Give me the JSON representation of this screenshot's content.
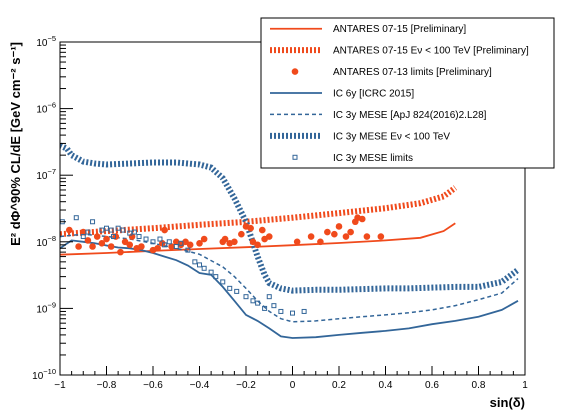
{
  "chart_data": {
    "type": "line",
    "title": "",
    "xlabel": "sin(δ)",
    "ylabel": "E² dΦ^90% CL/dE [GeV cm⁻² s⁻¹]",
    "xlim": [
      -1,
      1
    ],
    "ylim": [
      1e-10,
      1e-05
    ],
    "yscale": "log",
    "grid": false,
    "legend_position": "top-right",
    "x_ticks": [
      "−1",
      "−0.8",
      "−0.6",
      "−0.4",
      "−0.2",
      "0",
      "0.2",
      "0.4",
      "0.6",
      "0.8",
      "1"
    ],
    "x_tick_values": [
      -1,
      -0.8,
      -0.6,
      -0.4,
      -0.2,
      0,
      0.2,
      0.4,
      0.6,
      0.8,
      1
    ],
    "y_tick_values": [
      1e-10,
      1e-09,
      1e-08,
      1e-07,
      1e-06,
      1e-05
    ],
    "y_ticks": [
      {
        "base": "10",
        "exp": "−10"
      },
      {
        "base": "10",
        "exp": "−9"
      },
      {
        "base": "10",
        "exp": "−8"
      },
      {
        "base": "10",
        "exp": "−7"
      },
      {
        "base": "10",
        "exp": "−6"
      },
      {
        "base": "10",
        "exp": "−5"
      }
    ],
    "series": [
      {
        "name": "ANTARES 07-15 [Preliminary]",
        "style": "solid",
        "color": "#f04a1c",
        "x": [
          -1.0,
          -0.8,
          -0.6,
          -0.4,
          -0.2,
          0.0,
          0.2,
          0.4,
          0.55,
          0.65,
          0.7
        ],
        "y": [
          6.4e-09,
          6.8e-09,
          7.3e-09,
          7.8e-09,
          8.3e-09,
          8.9e-09,
          9.6e-09,
          1.05e-08,
          1.15e-08,
          1.45e-08,
          1.9e-08
        ]
      },
      {
        "name": "ANTARES 07-15 Eν < 100 TeV [Preliminary]",
        "style": "thick-dotted",
        "color": "#f04a1c",
        "x": [
          -1.0,
          -0.8,
          -0.6,
          -0.4,
          -0.2,
          0.0,
          0.2,
          0.4,
          0.55,
          0.65,
          0.7
        ],
        "y": [
          1.3e-08,
          1.45e-08,
          1.6e-08,
          1.8e-08,
          2e-08,
          2.3e-08,
          2.7e-08,
          3.2e-08,
          3.8e-08,
          4.8e-08,
          6.5e-08
        ]
      },
      {
        "name": "IC 6y [ICRC 2015]",
        "style": "solid",
        "color": "#336699",
        "x": [
          -1.0,
          -0.95,
          -0.9,
          -0.85,
          -0.8,
          -0.75,
          -0.7,
          -0.65,
          -0.6,
          -0.55,
          -0.5,
          -0.45,
          -0.4,
          -0.35,
          -0.3,
          -0.25,
          -0.2,
          -0.15,
          -0.1,
          -0.05,
          0.0,
          0.1,
          0.2,
          0.3,
          0.4,
          0.5,
          0.6,
          0.7,
          0.8,
          0.9,
          0.97
        ],
        "y": [
          8e-09,
          1.05e-08,
          1e-08,
          9.5e-09,
          8.8e-09,
          8.2e-09,
          8e-09,
          7.5e-09,
          6.8e-09,
          6e-09,
          5.3e-09,
          4.4e-09,
          3.4e-09,
          3.2e-09,
          2.1e-09,
          1.3e-09,
          8e-10,
          6.5e-10,
          5e-10,
          3.8e-10,
          3.6e-10,
          3.7e-10,
          4e-10,
          4.3e-10,
          4.6e-10,
          5e-10,
          5.8e-10,
          6.5e-10,
          7.5e-10,
          9.5e-10,
          1.3e-09
        ]
      },
      {
        "name": "IC 3y MESE [ApJ 824(2016)2.L28]",
        "style": "dashed",
        "color": "#336699",
        "x": [
          -1.0,
          -0.9,
          -0.8,
          -0.7,
          -0.6,
          -0.5,
          -0.4,
          -0.3,
          -0.25,
          -0.2,
          -0.15,
          -0.1,
          -0.05,
          0.0,
          0.1,
          0.2,
          0.3,
          0.4,
          0.5,
          0.6,
          0.7,
          0.8,
          0.9,
          0.97
        ],
        "y": [
          1.2e-08,
          1.3e-08,
          1.2e-08,
          1.1e-08,
          9.5e-09,
          8e-09,
          6.5e-09,
          4.2e-09,
          3e-09,
          2e-09,
          1.3e-09,
          9e-10,
          7e-10,
          6.3e-10,
          6.5e-10,
          7e-10,
          7.5e-10,
          8e-10,
          8.6e-10,
          9.5e-10,
          1.1e-09,
          1.35e-09,
          1.7e-09,
          2.8e-09
        ]
      },
      {
        "name": "IC 3y MESE Eν < 100 TeV",
        "style": "thick-dotted",
        "color": "#336699",
        "x": [
          -1.0,
          -0.97,
          -0.95,
          -0.9,
          -0.85,
          -0.8,
          -0.7,
          -0.6,
          -0.5,
          -0.4,
          -0.35,
          -0.3,
          -0.25,
          -0.2,
          -0.15,
          -0.12,
          -0.1,
          -0.05,
          0.0,
          0.1,
          0.2,
          0.3,
          0.4,
          0.5,
          0.6,
          0.7,
          0.8,
          0.9,
          0.97
        ],
        "y": [
          2.8e-07,
          2.5e-07,
          2e-07,
          1.6e-07,
          1.5e-07,
          1.45e-07,
          1.5e-07,
          1.55e-07,
          1.55e-07,
          1.45e-07,
          1.3e-07,
          9e-08,
          4.5e-08,
          2e-08,
          6e-09,
          3.2e-09,
          2.4e-09,
          2e-09,
          1.85e-09,
          1.9e-09,
          1.9e-09,
          1.95e-09,
          2e-09,
          2e-09,
          2.05e-09,
          2.1e-09,
          2.1e-09,
          2.5e-09,
          3.8e-09
        ]
      },
      {
        "name": "ANTARES 07-13 limits [Preliminary]",
        "style": "marker-circle",
        "color": "#f04a1c",
        "x": [
          -0.96,
          -0.92,
          -0.9,
          -0.88,
          -0.86,
          -0.84,
          -0.82,
          -0.8,
          -0.78,
          -0.76,
          -0.74,
          -0.72,
          -0.7,
          -0.69,
          -0.67,
          -0.65,
          -0.6,
          -0.58,
          -0.56,
          -0.55,
          -0.52,
          -0.5,
          -0.48,
          -0.46,
          -0.44,
          -0.4,
          -0.38,
          -0.3,
          -0.29,
          -0.27,
          -0.25,
          -0.22,
          -0.2,
          -0.18,
          -0.17,
          -0.15,
          -0.13,
          -0.12,
          -0.1,
          0.02,
          0.08,
          0.12,
          0.15,
          0.18,
          0.2,
          0.23,
          0.25,
          0.27,
          0.28,
          0.3,
          0.32,
          0.38
        ],
        "y": [
          1.5e-08,
          8.5e-09,
          1.4e-08,
          1.05e-08,
          8.5e-09,
          1.2e-08,
          9.5e-09,
          1.1e-08,
          8.5e-09,
          1.2e-08,
          7e-09,
          1e-08,
          9e-09,
          1.2e-08,
          8e-09,
          8.5e-09,
          7.5e-09,
          8e-09,
          9.5e-09,
          1.5e-08,
          8.5e-09,
          1e-08,
          9e-09,
          1e-08,
          9e-09,
          9.5e-09,
          1.1e-08,
          1e-08,
          1.1e-08,
          9.5e-09,
          1e-08,
          1.3e-08,
          1.7e-08,
          1.6e-08,
          1e-08,
          9e-09,
          1.5e-08,
          1.1e-08,
          1.2e-08,
          1e-08,
          1.2e-08,
          1e-08,
          1.4e-08,
          1.3e-08,
          1.7e-08,
          1.2e-08,
          1.4e-08,
          2e-08,
          2.3e-08,
          2.2e-08,
          1.2e-08,
          1.2e-08
        ]
      },
      {
        "name": "IC 3y MESE limits",
        "style": "marker-open-square",
        "color": "#336699",
        "x": [
          -0.99,
          -0.93,
          -0.9,
          -0.88,
          -0.86,
          -0.82,
          -0.8,
          -0.78,
          -0.77,
          -0.75,
          -0.73,
          -0.7,
          -0.68,
          -0.66,
          -0.63,
          -0.6,
          -0.57,
          -0.55,
          -0.53,
          -0.5,
          -0.48,
          -0.45,
          -0.42,
          -0.4,
          -0.38,
          -0.35,
          -0.33,
          -0.3,
          -0.27,
          -0.24,
          -0.2,
          -0.17,
          -0.15,
          -0.12,
          -0.1,
          -0.08,
          -0.05,
          0.0,
          0.05
        ],
        "y": [
          2e-08,
          2.3e-08,
          1.2e-08,
          1.4e-08,
          2e-08,
          1.5e-08,
          1.6e-08,
          1.5e-08,
          1.2e-08,
          1.6e-08,
          1.5e-08,
          1.35e-08,
          1.4e-08,
          1.2e-08,
          1.1e-08,
          1e-08,
          1.1e-08,
          9e-09,
          1e-08,
          8.5e-09,
          9.5e-09,
          7.5e-09,
          5e-09,
          4.5e-09,
          4e-09,
          3.5e-09,
          3e-09,
          2.5e-09,
          2e-09,
          1.8e-09,
          1.5e-09,
          1.3e-09,
          1.2e-09,
          1e-09,
          1.5e-09,
          1.1e-09,
          9e-10,
          8.5e-10,
          9e-10
        ]
      }
    ],
    "legend_order": [
      0,
      1,
      5,
      2,
      3,
      4,
      6
    ]
  }
}
